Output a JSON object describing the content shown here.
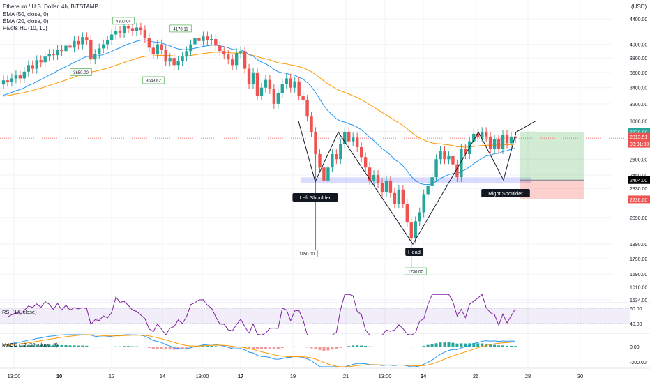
{
  "chart_data": {
    "type": "candlestick",
    "legend": {
      "symbol": "Ethereum / U.S. Dollar, 4h, BITSTAMP",
      "indicators": [
        "EMA (50, close, 0)",
        "EMA (20, close, 0)",
        "Pivots HL (10, 10)"
      ]
    },
    "currency": "(USD)",
    "price_axis": {
      "ticks": [
        "4400.00",
        "4000.00",
        "3800.00",
        "3600.00",
        "3400.00",
        "3200.00",
        "3000.00",
        "2600.00",
        "2450.00",
        "2330.00",
        "2090.00",
        "1890.00",
        "1790.00",
        "1690.00",
        "1610.00",
        "1534.00"
      ],
      "ylim": [
        1534,
        4650
      ],
      "log_scale": true
    },
    "price_badges": [
      {
        "label": "2878.00",
        "value": 2878,
        "color": "#26a69a"
      },
      {
        "label": "2813.51",
        "value": 2813.51,
        "color": "#ef5350"
      },
      {
        "label": "03:31:00",
        "value": 2748,
        "color": "#ef5350"
      },
      {
        "label": "2404.00",
        "value": 2404,
        "color": "#000000"
      },
      {
        "label": "2236.00",
        "value": 2236,
        "color": "#ef5350"
      }
    ],
    "current_price": 2813.51,
    "time_axis": [
      {
        "label": "13:00",
        "bold": false
      },
      {
        "label": "10",
        "bold": true
      },
      {
        "label": "12",
        "bold": false
      },
      {
        "label": "14",
        "bold": false
      },
      {
        "label": "13:00",
        "bold": false
      },
      {
        "label": "17",
        "bold": true
      },
      {
        "label": "19",
        "bold": false
      },
      {
        "label": "21",
        "bold": false
      },
      {
        "label": "13:00",
        "bold": false
      },
      {
        "label": "24",
        "bold": true
      },
      {
        "label": "26",
        "bold": false
      },
      {
        "label": "28",
        "bold": false
      },
      {
        "label": "30",
        "bold": false
      }
    ],
    "pivots": [
      {
        "label": "4300.04",
        "price": 4300,
        "kind": "high"
      },
      {
        "label": "4178.11",
        "price": 4178,
        "kind": "high"
      },
      {
        "label": "3650.00",
        "price": 3650,
        "kind": "low"
      },
      {
        "label": "3543.62",
        "price": 3543,
        "kind": "low"
      },
      {
        "label": "1850.00",
        "price": 1850,
        "kind": "low"
      },
      {
        "label": "1730.00",
        "price": 1730,
        "kind": "low"
      }
    ],
    "annotations": [
      "Left Shoulder",
      "Head",
      "Right Shoulder"
    ],
    "neckline": 2878,
    "support_zone": [
      2380,
      2428
    ],
    "position": {
      "entry": 2404,
      "target": 2878,
      "stop": 2236
    },
    "pattern_path": [
      3000,
      2390,
      2878,
      1890,
      2878,
      2404,
      2878,
      3000
    ],
    "candles": [
      [
        3440,
        3495
      ],
      [
        3495,
        3475
      ],
      [
        3475,
        3520
      ],
      [
        3520,
        3560
      ],
      [
        3560,
        3520
      ],
      [
        3520,
        3610
      ],
      [
        3610,
        3700
      ],
      [
        3700,
        3650
      ],
      [
        3650,
        3770
      ],
      [
        3770,
        3740
      ],
      [
        3740,
        3820
      ],
      [
        3820,
        3860
      ],
      [
        3860,
        3840
      ],
      [
        3840,
        3920
      ],
      [
        3920,
        3900
      ],
      [
        3900,
        3980
      ],
      [
        3980,
        3950
      ],
      [
        3950,
        4050
      ],
      [
        4050,
        4000
      ],
      [
        4000,
        4110
      ],
      [
        4110,
        4070
      ],
      [
        4070,
        3780
      ],
      [
        3780,
        3860
      ],
      [
        3860,
        3940
      ],
      [
        3940,
        4000
      ],
      [
        4000,
        4060
      ],
      [
        4060,
        4150
      ],
      [
        4150,
        4200
      ],
      [
        4200,
        4170
      ],
      [
        4170,
        4280
      ],
      [
        4280,
        4250
      ],
      [
        4250,
        4200
      ],
      [
        4200,
        4260
      ],
      [
        4260,
        4220
      ],
      [
        4220,
        4100
      ],
      [
        4100,
        3950
      ],
      [
        3950,
        3850
      ],
      [
        3850,
        4000
      ],
      [
        4000,
        3920
      ],
      [
        3920,
        3750
      ],
      [
        3750,
        3800
      ],
      [
        3800,
        3700
      ],
      [
        3700,
        3760
      ],
      [
        3760,
        3820
      ],
      [
        3820,
        3900
      ],
      [
        3900,
        4000
      ],
      [
        4000,
        4100
      ],
      [
        4100,
        4050
      ],
      [
        4050,
        4120
      ],
      [
        4120,
        4060
      ],
      [
        4060,
        4080
      ],
      [
        4080,
        3980
      ],
      [
        3980,
        3900
      ],
      [
        3900,
        3850
      ],
      [
        3850,
        3780
      ],
      [
        3780,
        3700
      ],
      [
        3700,
        3870
      ],
      [
        3870,
        3900
      ],
      [
        3900,
        3650
      ],
      [
        3650,
        3450
      ],
      [
        3450,
        3600
      ],
      [
        3600,
        3300
      ],
      [
        3300,
        3400
      ],
      [
        3400,
        3500
      ],
      [
        3500,
        3380
      ],
      [
        3380,
        3200
      ],
      [
        3200,
        3330
      ],
      [
        3330,
        3450
      ],
      [
        3450,
        3520
      ],
      [
        3520,
        3400
      ],
      [
        3400,
        3480
      ],
      [
        3480,
        3300
      ],
      [
        3300,
        3250
      ],
      [
        3250,
        3050
      ],
      [
        3050,
        2880
      ],
      [
        2880,
        2650
      ],
      [
        2650,
        2520
      ],
      [
        2520,
        2400
      ],
      [
        2400,
        2520
      ],
      [
        2520,
        2650
      ],
      [
        2650,
        2600
      ],
      [
        2600,
        2750
      ],
      [
        2750,
        2880
      ],
      [
        2880,
        2780
      ],
      [
        2780,
        2820
      ],
      [
        2820,
        2720
      ],
      [
        2720,
        2620
      ],
      [
        2620,
        2520
      ],
      [
        2520,
        2400
      ],
      [
        2400,
        2450
      ],
      [
        2450,
        2380
      ],
      [
        2380,
        2300
      ],
      [
        2300,
        2400
      ],
      [
        2400,
        2290
      ],
      [
        2290,
        2200
      ],
      [
        2200,
        2320
      ],
      [
        2320,
        2200
      ],
      [
        2200,
        2050
      ],
      [
        2050,
        1930
      ],
      [
        1930,
        2060
      ],
      [
        2060,
        2130
      ],
      [
        2130,
        2280
      ],
      [
        2280,
        2350
      ],
      [
        2350,
        2430
      ],
      [
        2430,
        2600
      ],
      [
        2600,
        2680
      ],
      [
        2680,
        2600
      ],
      [
        2600,
        2630
      ],
      [
        2630,
        2550
      ],
      [
        2550,
        2430
      ],
      [
        2430,
        2700
      ],
      [
        2700,
        2650
      ],
      [
        2650,
        2780
      ],
      [
        2780,
        2860
      ],
      [
        2860,
        2820
      ],
      [
        2820,
        2880
      ],
      [
        2880,
        2830
      ],
      [
        2830,
        2700
      ],
      [
        2700,
        2800
      ],
      [
        2800,
        2700
      ],
      [
        2700,
        2850
      ],
      [
        2850,
        2760
      ],
      [
        2760,
        2830
      ],
      [
        2830,
        2813
      ]
    ],
    "rsi": {
      "label": "RSI (14, close)",
      "ticks": [
        "60.00",
        "40.00"
      ],
      "band": [
        40,
        60
      ]
    },
    "macd": {
      "label": "MACD (12, 26, close, 9)",
      "ticks": [
        "0.00",
        "-200.00"
      ]
    }
  }
}
